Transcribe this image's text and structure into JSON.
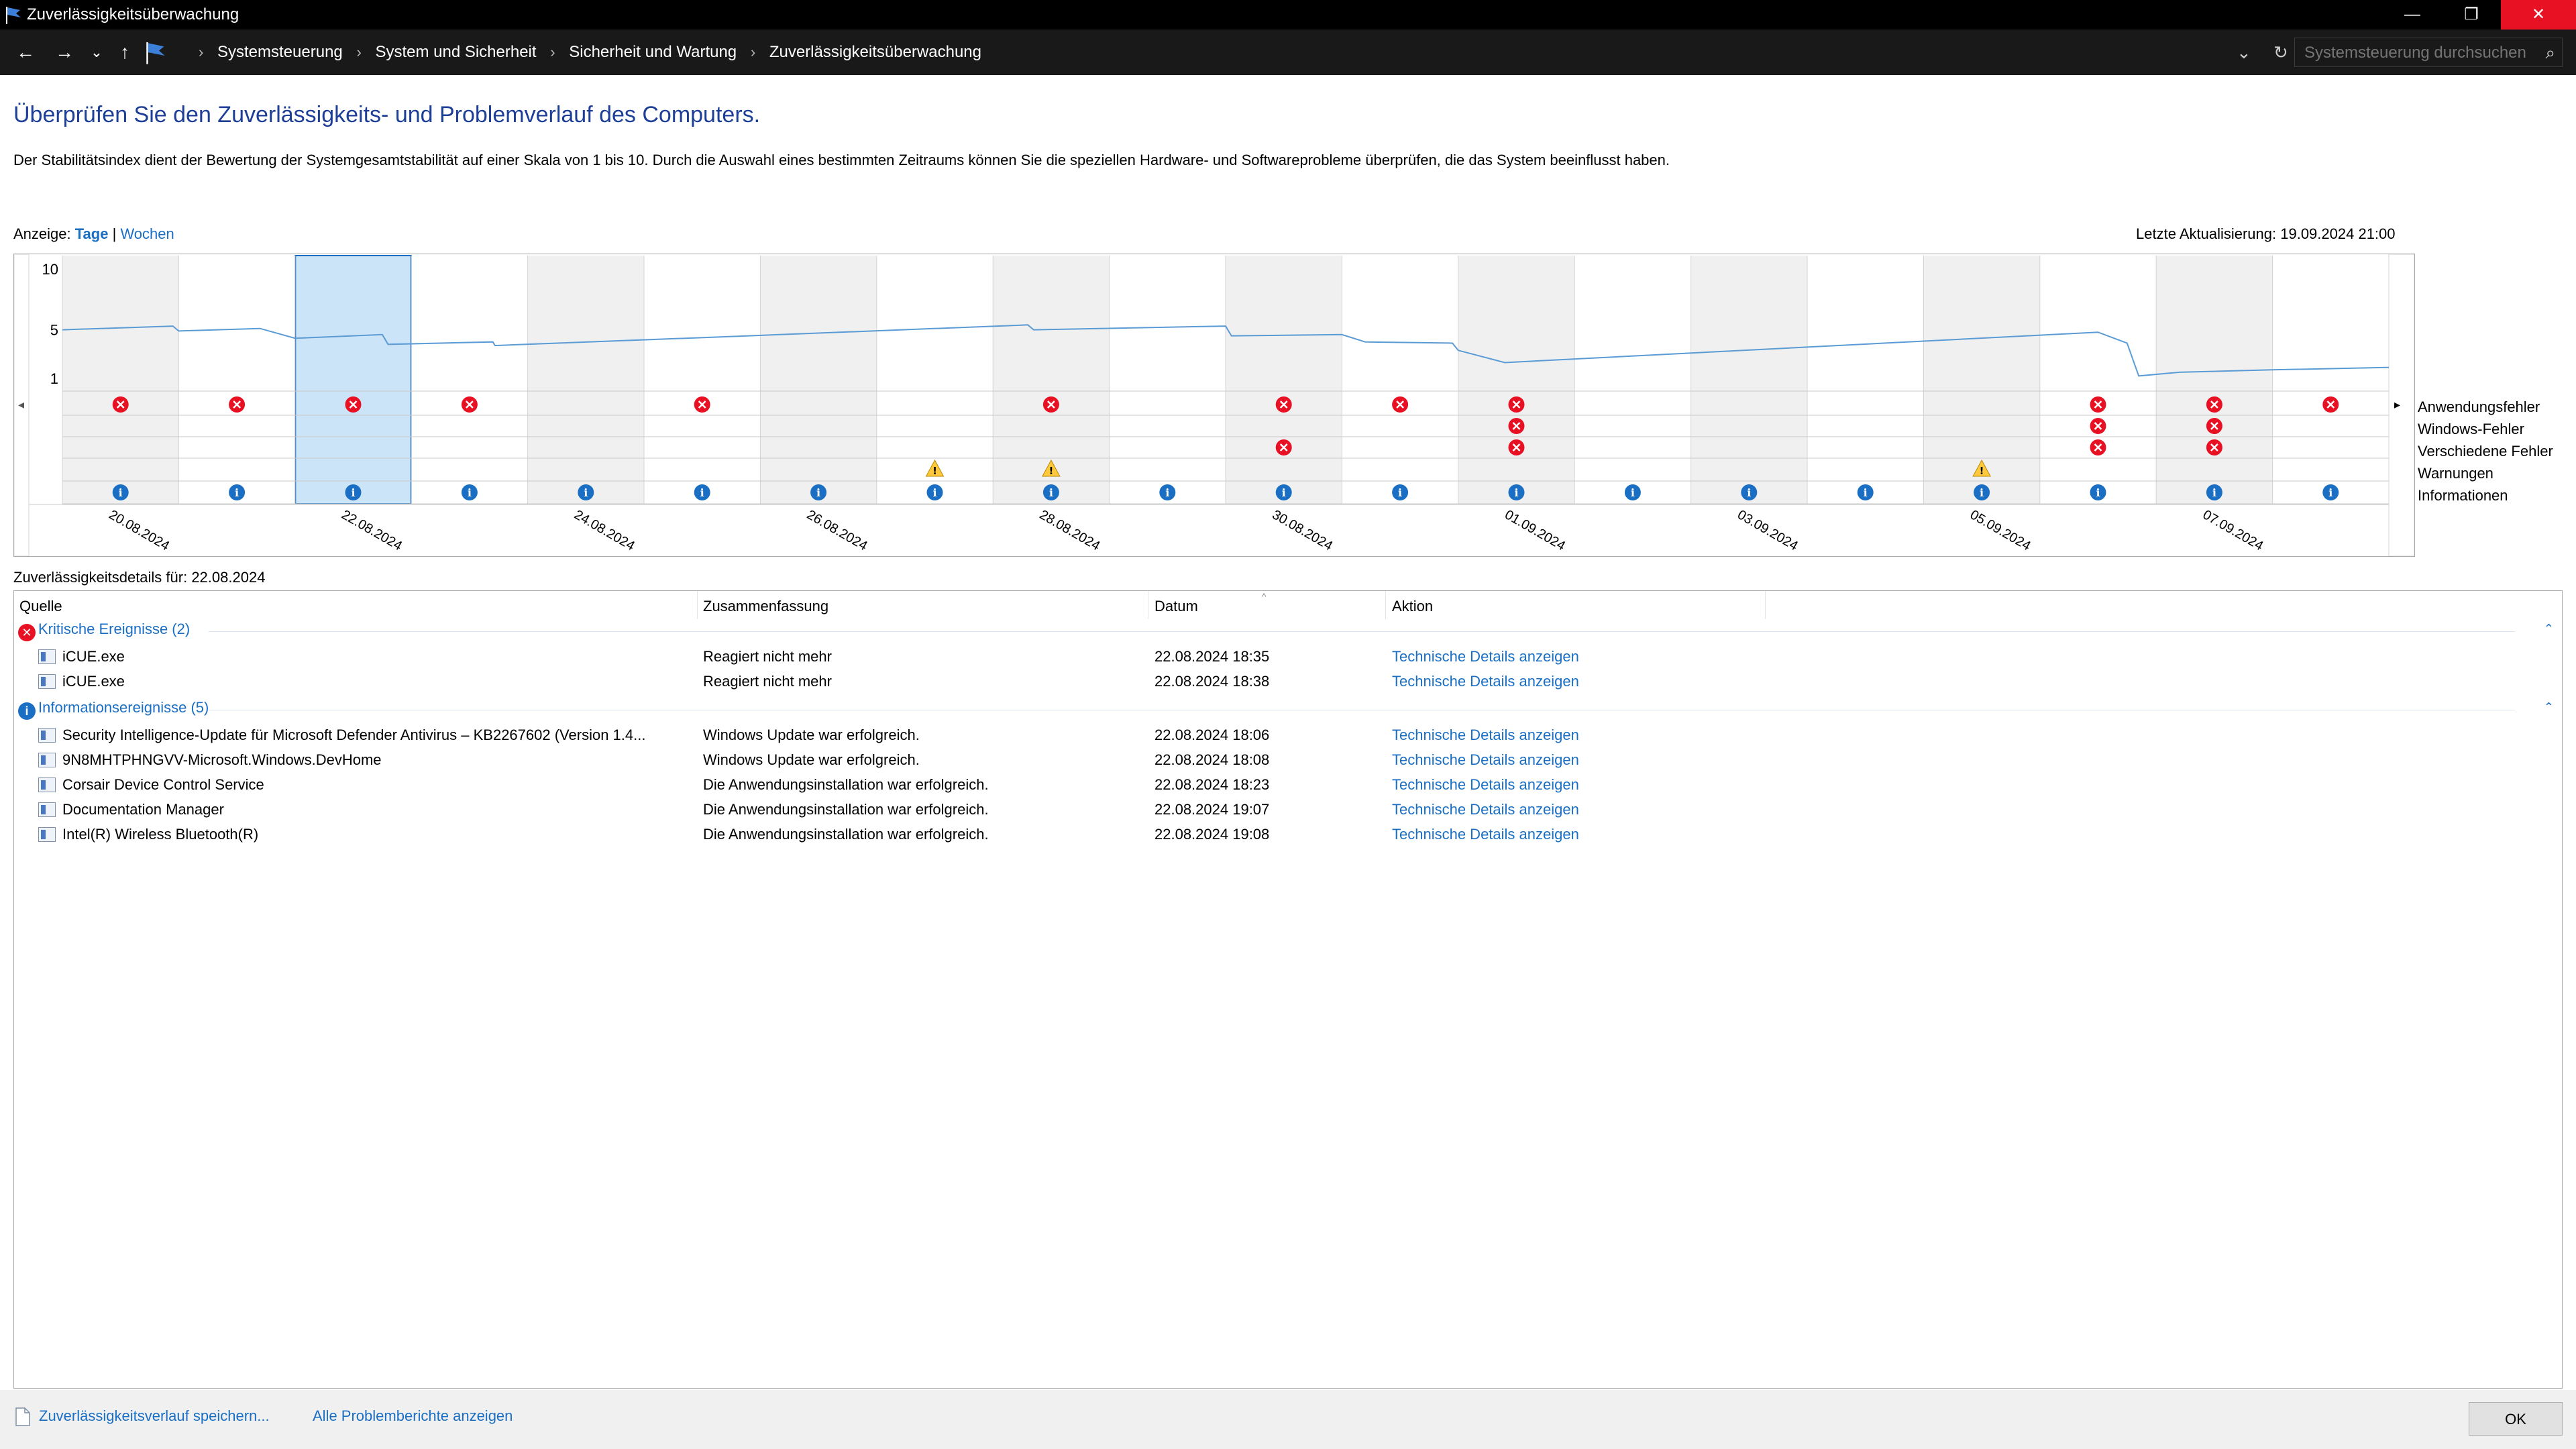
{
  "window": {
    "title": "Zuverlässigkeitsüberwachung",
    "minimize": "—",
    "maximize": "❐",
    "close": "✕"
  },
  "nav": {
    "back": "←",
    "forward": "→",
    "recent": "⌄",
    "up": "↑",
    "breadcrumbs": [
      "Systemsteuerung",
      "System und Sicherheit",
      "Sicherheit und Wartung",
      "Zuverlässigkeitsüberwachung"
    ],
    "search_placeholder": "Systemsteuerung durchsuchen"
  },
  "page": {
    "heading": "Überprüfen Sie den Zuverlässigkeits- und Problemverlauf des Computers.",
    "description": "Der Stabilitätsindex dient der Bewertung der Systemgesamtstabilität auf einer Skala von 1 bis 10. Durch die Auswahl eines bestimmten Zeitraums können Sie die speziellen Hardware- und Softwareprobleme überprüfen, die das System beeinflusst haben.",
    "view_label": "Anzeige:",
    "view_days": "Tage",
    "view_separator": "|",
    "view_weeks": "Wochen",
    "last_update": "Letzte Aktualisierung: 19.09.2024 21:00"
  },
  "chart_data": {
    "type": "line",
    "y_ticks": [
      "10",
      "5",
      "1"
    ],
    "ylim": [
      1,
      10
    ],
    "columns": [
      "20.08",
      "21.08",
      "22.08",
      "23.08",
      "24.08",
      "25.08",
      "26.08",
      "27.08",
      "28.08",
      "29.08",
      "30.08",
      "31.08",
      "01.09",
      "02.09",
      "03.09",
      "04.09",
      "05.09",
      "06.09",
      "07.09",
      "08.09"
    ],
    "x_labels": [
      "20.08.2024",
      "22.08.2024",
      "24.08.2024",
      "26.08.2024",
      "28.08.2024",
      "30.08.2024",
      "01.09.2024",
      "03.09.2024",
      "05.09.2024",
      "07.09.2024"
    ],
    "selected_column": 2,
    "stability_points": [
      [
        0,
        5.0
      ],
      [
        0.95,
        5.3
      ],
      [
        1.0,
        4.9
      ],
      [
        1.7,
        5.1
      ],
      [
        2.0,
        4.3
      ],
      [
        2.75,
        4.6
      ],
      [
        2.8,
        3.8
      ],
      [
        3.7,
        4.0
      ],
      [
        3.72,
        3.7
      ],
      [
        5.9,
        4.5
      ],
      [
        8.3,
        5.4
      ],
      [
        8.35,
        5.0
      ],
      [
        10.0,
        5.3
      ],
      [
        10.05,
        4.5
      ],
      [
        11.0,
        4.6
      ],
      [
        11.2,
        4.0
      ],
      [
        11.95,
        3.9
      ],
      [
        12.0,
        3.3
      ],
      [
        12.4,
        2.3
      ],
      [
        17.5,
        4.8
      ],
      [
        17.75,
        3.9
      ],
      [
        17.85,
        1.2
      ],
      [
        18.2,
        1.5
      ],
      [
        19.0,
        1.7
      ],
      [
        20.0,
        1.9
      ]
    ],
    "rows": [
      "Anwendungsfehler",
      "Windows-Fehler",
      "Verschiedene Fehler",
      "Warnungen",
      "Informationen"
    ],
    "events": {
      "Anwendungsfehler": [
        0,
        1,
        2,
        3,
        5,
        8,
        10,
        11,
        12,
        17,
        18,
        19
      ],
      "Windows-Fehler": [
        12,
        17,
        18
      ],
      "Verschiedene Fehler": [
        10,
        12,
        17,
        18
      ],
      "Warnungen": [
        7,
        8,
        16
      ],
      "Informationen": [
        0,
        1,
        2,
        3,
        4,
        5,
        6,
        7,
        8,
        9,
        10,
        11,
        12,
        13,
        14,
        15,
        16,
        17,
        18,
        19
      ]
    },
    "scroll_left": "◂",
    "scroll_right": "▸",
    "legend_placement": "right"
  },
  "details": {
    "title": "Zuverlässigkeitsdetails für: 22.08.2024",
    "columns": [
      "Quelle",
      "Zusammenfassung",
      "Datum",
      "Aktion"
    ],
    "groups": [
      {
        "label": "Kritische Ereignisse (2)",
        "icon": "critical-error-icon",
        "symbol": "✕",
        "color": "#e81123",
        "rows": [
          {
            "source": "iCUE.exe",
            "summary": "Reagiert nicht mehr",
            "date": "22.08.2024 18:35",
            "action": "Technische Details anzeigen"
          },
          {
            "source": "iCUE.exe",
            "summary": "Reagiert nicht mehr",
            "date": "22.08.2024 18:38",
            "action": "Technische Details anzeigen"
          }
        ]
      },
      {
        "label": "Informationsereignisse (5)",
        "icon": "information-icon",
        "symbol": "i",
        "color": "#1a6fc4",
        "rows": [
          {
            "source": "Security Intelligence-Update für Microsoft Defender Antivirus – KB2267602 (Version 1.4...",
            "summary": "Windows Update war erfolgreich.",
            "date": "22.08.2024 18:06",
            "action": "Technische Details anzeigen"
          },
          {
            "source": "9N8MHTPHNGVV-Microsoft.Windows.DevHome",
            "summary": "Windows Update war erfolgreich.",
            "date": "22.08.2024 18:08",
            "action": "Technische Details anzeigen"
          },
          {
            "source": "Corsair Device Control Service",
            "summary": "Die Anwendungsinstallation war erfolgreich.",
            "date": "22.08.2024 18:23",
            "action": "Technische Details anzeigen"
          },
          {
            "source": "Documentation Manager",
            "summary": "Die Anwendungsinstallation war erfolgreich.",
            "date": "22.08.2024 19:07",
            "action": "Technische Details anzeigen"
          },
          {
            "source": "Intel(R) Wireless Bluetooth(R)",
            "summary": "Die Anwendungsinstallation war erfolgreich.",
            "date": "22.08.2024 19:08",
            "action": "Technische Details anzeigen"
          }
        ]
      }
    ]
  },
  "footer": {
    "save_link": "Zuverlässigkeitsverlauf speichern...",
    "all_reports_link": "Alle Problemberichte anzeigen",
    "ok": "OK"
  },
  "colors": {
    "titlebar": "#000000",
    "addressbar": "#191919",
    "heading": "#1e3f97",
    "link": "#1a6fc4",
    "selected_column": "#cce4f7",
    "stability_line": "#5b9bd5",
    "error": "#e81123",
    "warning": "#ffc83d",
    "info": "#1a6fc4",
    "close_button": "#e81123"
  }
}
